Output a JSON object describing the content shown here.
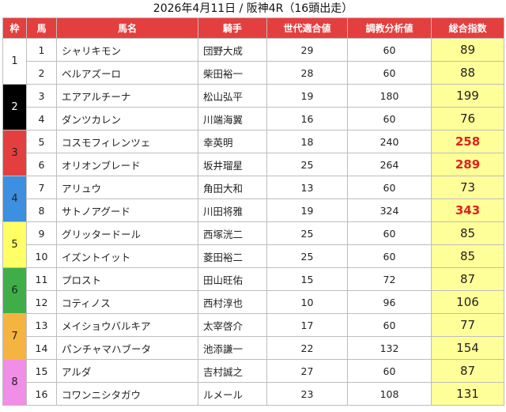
{
  "page_title": "2026年4月11日 / 阪神4R（16頭出走）",
  "headers": [
    "枠",
    "馬",
    "馬名",
    "騎手",
    "世代適合値",
    "調教分析値",
    "総合指数"
  ],
  "frames": [
    {
      "label": "1",
      "bg": "#ffffff",
      "fg": "#222222"
    },
    {
      "label": "2",
      "bg": "#000000",
      "fg": "#ffffff"
    },
    {
      "label": "3",
      "bg": "#e43f3f",
      "fg": "#222222"
    },
    {
      "label": "4",
      "bg": "#3d8fe0",
      "fg": "#222222"
    },
    {
      "label": "5",
      "bg": "#ffff66",
      "fg": "#222222"
    },
    {
      "label": "6",
      "bg": "#3fae49",
      "fg": "#222222"
    },
    {
      "label": "7",
      "bg": "#f5b340",
      "fg": "#222222"
    },
    {
      "label": "8",
      "bg": "#f08ee8",
      "fg": "#222222"
    }
  ],
  "horses": [
    {
      "num": "1",
      "name": "シャリキモン",
      "jockey": "団野大成",
      "gen": "29",
      "train": "60",
      "score": "89",
      "highlight": false
    },
    {
      "num": "2",
      "name": "ベルアズーロ",
      "jockey": "柴田裕一",
      "gen": "28",
      "train": "60",
      "score": "88",
      "highlight": false
    },
    {
      "num": "3",
      "name": "エアアルチーナ",
      "jockey": "松山弘平",
      "gen": "19",
      "train": "180",
      "score": "199",
      "highlight": false
    },
    {
      "num": "4",
      "name": "ダンツカレン",
      "jockey": "川端海翼",
      "gen": "16",
      "train": "60",
      "score": "76",
      "highlight": false
    },
    {
      "num": "5",
      "name": "コスモフィレンツェ",
      "jockey": "幸英明",
      "gen": "18",
      "train": "240",
      "score": "258",
      "highlight": true
    },
    {
      "num": "6",
      "name": "オリオンブレード",
      "jockey": "坂井瑠星",
      "gen": "25",
      "train": "264",
      "score": "289",
      "highlight": true
    },
    {
      "num": "7",
      "name": "アリュウ",
      "jockey": "角田大和",
      "gen": "13",
      "train": "60",
      "score": "73",
      "highlight": false
    },
    {
      "num": "8",
      "name": "サトノアグード",
      "jockey": "川田将雅",
      "gen": "19",
      "train": "324",
      "score": "343",
      "highlight": true
    },
    {
      "num": "9",
      "name": "グリッタードール",
      "jockey": "西塚洸二",
      "gen": "25",
      "train": "60",
      "score": "85",
      "highlight": false
    },
    {
      "num": "10",
      "name": "イズントイット",
      "jockey": "菱田裕二",
      "gen": "25",
      "train": "60",
      "score": "85",
      "highlight": false
    },
    {
      "num": "11",
      "name": "プロスト",
      "jockey": "田山旺佑",
      "gen": "15",
      "train": "72",
      "score": "87",
      "highlight": false
    },
    {
      "num": "12",
      "name": "コティノス",
      "jockey": "西村淳也",
      "gen": "10",
      "train": "96",
      "score": "106",
      "highlight": false
    },
    {
      "num": "13",
      "name": "メイショウバルキア",
      "jockey": "太宰啓介",
      "gen": "17",
      "train": "60",
      "score": "77",
      "highlight": false
    },
    {
      "num": "14",
      "name": "パンチャマハブータ",
      "jockey": "池添謙一",
      "gen": "22",
      "train": "132",
      "score": "154",
      "highlight": false
    },
    {
      "num": "15",
      "name": "アルダ",
      "jockey": "吉村誠之",
      "gen": "27",
      "train": "60",
      "score": "87",
      "highlight": false
    },
    {
      "num": "16",
      "name": "コワンニシタガウ",
      "jockey": "ルメール",
      "gen": "23",
      "train": "108",
      "score": "131",
      "highlight": false
    }
  ]
}
